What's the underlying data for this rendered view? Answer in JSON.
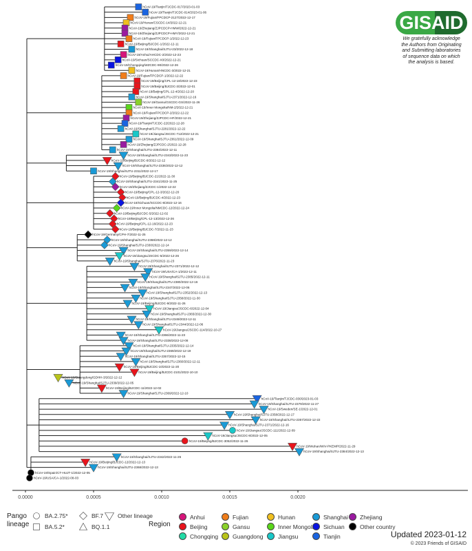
{
  "logo": {
    "text": "GISAID",
    "acknowledgement": [
      "We gratefully acknowledge",
      "the Authors from Originating",
      "and Submitting laboratories",
      "of sequence data on which",
      "the analysis is based."
    ]
  },
  "axis": {
    "ticks": [
      "0.0000",
      "0.0005",
      "0.0010",
      "0.0015",
      "0.0020"
    ],
    "tick_values": [
      0,
      0.0005,
      0.001,
      0.0015,
      0.002
    ]
  },
  "lineage_legend": {
    "title": [
      "Pango",
      "lineage"
    ],
    "items": [
      {
        "key": "ci",
        "label": "BA.2.75*",
        "shape": "circle"
      },
      {
        "key": "sq",
        "label": "BA.5.2*",
        "shape": "square"
      },
      {
        "key": "dm",
        "label": "BF.7",
        "shape": "diamond"
      },
      {
        "key": "tu",
        "label": "BQ.1.1",
        "shape": "triangle-up"
      },
      {
        "key": "td",
        "label": "Other lineage",
        "shape": "triangle-down"
      }
    ]
  },
  "region_legend": {
    "title": "Region",
    "items": [
      {
        "key": "AH",
        "label": "Anhui",
        "color": "#d6157a"
      },
      {
        "key": "BJ",
        "label": "Beijing",
        "color": "#e8141b"
      },
      {
        "key": "CQ",
        "label": "Chongqing",
        "color": "#22dba6"
      },
      {
        "key": "FJ",
        "label": "Fujian",
        "color": "#f07d1a"
      },
      {
        "key": "GS",
        "label": "Gansu",
        "color": "#8ad12a"
      },
      {
        "key": "GD",
        "label": "Guangdong",
        "color": "#b9c41a"
      },
      {
        "key": "HN",
        "label": "Hunan",
        "color": "#f0c020"
      },
      {
        "key": "IM",
        "label": "Inner Mongolia",
        "color": "#5ad61a"
      },
      {
        "key": "JS",
        "label": "Jiangsu",
        "color": "#19c8c8"
      },
      {
        "key": "SH",
        "label": "Shanghai",
        "color": "#1a9ad6"
      },
      {
        "key": "SC",
        "label": "Sichuan",
        "color": "#0a14e0"
      },
      {
        "key": "TJ",
        "label": "Tianjin",
        "color": "#1a64e0"
      },
      {
        "key": "ZJ",
        "label": "Zhejiang",
        "color": "#9a1aa0"
      },
      {
        "key": "OT",
        "label": "Other country",
        "color": "#000000"
      }
    ]
  },
  "footer": {
    "updated": "Updated 2023-01-12",
    "copyright": "© 2023 Friends of GISAID"
  },
  "tree": {
    "clades": [
      {
        "root": 0.00058,
        "tips": [
          [
            "hCoV-19/Tianjin/TJCDC-017/2023-01-03",
            "TJ",
            "sq",
            0.00083
          ],
          [
            "hCoV-19/Tianjin/TJCDC-014/2023-01-06",
            "TJ",
            "sq",
            0.00088
          ],
          [
            "hCoV-19/Fujian/FPCDCP-2127/2022-12-17",
            "FJ",
            "sq",
            0.00077
          ],
          [
            "hCoV-19/Hunan/CSCDC-14/2022-12-21",
            "HN",
            "sq",
            0.00074
          ],
          [
            "hCoV-19/Zhejiang/ZJPCDCP-HMW/2022-12-21",
            "ZJ",
            "sq",
            0.00073
          ],
          [
            "hCoV-19/Zhejiang/ZJPCDCP-HMY/2022-12-21",
            "ZJ",
            "sq",
            0.00073
          ],
          [
            "hCoV-19/Fujian/FPCDCP-1/2022-12-23",
            "FJ",
            "sq",
            0.00076
          ],
          [
            "hCoV-19/Beijing/BJCDC-1/2022-12-11",
            "BJ",
            "sq",
            0.0007
          ],
          [
            "hCoV-19/Shanghai/SJTU-23/2022-12-18",
            "SH",
            "sq",
            0.00078
          ],
          [
            "hCoV-19/Anhui/AHCDC-2/2022-12-23",
            "AH",
            "sq",
            0.00072
          ],
          [
            "hCoV-19/Sichuan/SCCDC-X0/2022-12-21",
            "SC",
            "sq",
            0.00068
          ],
          [
            "hCoV-19/Chongqing/WZCDC-90/2022-12-26",
            "SC",
            "sq",
            0.00063
          ],
          [
            "hCoV-19/Hunan/HNCDC-3/2022-12-21",
            "HN",
            "sq",
            0.00078
          ]
        ]
      },
      {
        "root": 0.00056,
        "tips": [
          [
            "hCoV-19/Fujian/FPCDCP-1/2022-12-22",
            "FJ",
            "sq",
            0.00072
          ],
          [
            "hCoV-19/Beijing/CPL-12-18/2022-12-23",
            "BJ",
            "sq",
            0.00082
          ],
          [
            "hCoV-19/Beijing/BJCDC-3/2022-12-01",
            "BJ",
            "sq",
            0.00082
          ],
          [
            "hCoV-19/Beijing/CPL-12-4/2022-12-20",
            "BJ",
            "sq",
            0.00081
          ],
          [
            "hCoV-19/Shanghai/SJTU-2371/2022-12-16",
            "SH",
            "sq",
            0.00078
          ],
          [
            "hCoV-19/Gansu/GSCDC-GS/2022-11-26",
            "GS",
            "sq",
            0.00083
          ],
          [
            "hCoV-19/Inner Mongolia/NM-2/2022-12-21",
            "IM",
            "sq",
            0.00076
          ],
          [
            "hCoV-19/Fujian/FPCDCP-2/2022-12-22",
            "FJ",
            "sq",
            0.00076
          ],
          [
            "hCoV-19/Zhejiang/ZJPCDC-HF/2022-12-21",
            "ZJ",
            "sq",
            0.00074
          ],
          [
            "hCoV-19/Tianjin/TJCDC-22/2022-12-28",
            "TJ",
            "sq",
            0.00073
          ],
          [
            "hCoV-19/Shanghai/SJTU-2281/2022-12-22",
            "SH",
            "sq",
            0.0007
          ],
          [
            "hCoV-19/Jiangsu/JSCDC-712/2022-12-21",
            "JS",
            "sq",
            0.00081
          ],
          [
            "hCoV-19/Shanghai/SJTU-2361/2022-12-09",
            "SH",
            "sq",
            0.00076
          ],
          [
            "hCoV-19/Zhejiang/ZJPCDC-2/2022-12-28",
            "ZJ",
            "sq",
            0.00072
          ],
          [
            "hCoV-19/Shanghai/SJTU-2384/2022-12-11",
            "SH",
            "sq",
            0.00064
          ]
        ]
      },
      {
        "root": 0.0003,
        "tips": [
          [
            "hCoV-19/Shanghai/SJTU-2343/2022-11-23",
            "SH",
            "td",
            0.00072
          ],
          [
            "hCoV-19/Beijing/BJCDC-8/2022-12-12",
            "BJ",
            "td",
            0.0006
          ],
          [
            "hCoV-19/Shanghai/SJTU-2336/2022-12-12",
            "SH",
            "td",
            0.00068
          ],
          [
            "hCoV-19/Shanghai/SJTU-2311/2022-12-17",
            "SH",
            "sq",
            0.0005
          ]
        ]
      },
      {
        "root": 0.0005,
        "tips": [
          [
            "hCoV-19/Beijing/BJCDC-21/2022-11-30",
            "BJ",
            "dm",
            0.00066
          ],
          [
            "hCoV-19/Shanghai/SJTU-2341/2022-11-25",
            "SH",
            "dm",
            0.00064
          ],
          [
            "hCoV-19/Zhejiang/ZJCDC-1/2022-12-22",
            "ZJ",
            "dm",
            0.00066
          ],
          [
            "hCoV-19/Beijing/CPL-12-3/2022-12-20",
            "BJ",
            "dm",
            0.0007
          ],
          [
            "hCoV-19/Beijing/BJCDC-4/2022-12-23",
            "BJ",
            "dm",
            0.00071
          ],
          [
            "hCoV-19/Sichuan/SCCDC-8/2022-12-16",
            "SC",
            "dm",
            0.0007
          ],
          [
            "hCoV-19/Inner Mongolia/NMCDC-12/2022-12-24",
            "IM",
            "dm",
            0.00067
          ],
          [
            "hCoV-19/Beijing/BJCDC-5/2022-12-02",
            "BJ",
            "dm",
            0.00062
          ],
          [
            "hCoV-19/Beijing/CPL-12-13/2022-12-26",
            "BJ",
            "dm",
            0.00065
          ],
          [
            "hCoV-19/Beijing/CPL-12-16/2022-12-23",
            "BJ",
            "dm",
            0.00064
          ],
          [
            "hCoV-19/Beijing/BJCDC-7/2022-11-23",
            "BJ",
            "dm",
            0.00066
          ]
        ]
      },
      {
        "root": 0.00038,
        "tips": [
          [
            "hCoV-19/Germany/CPH-7/2022-11-25",
            "OT",
            "dm",
            0.00046
          ],
          [
            "hCoV-19/Shanghai/SJTU-2368/2022-12-12",
            "SH",
            "dm",
            0.0006
          ],
          [
            "hCoV-19/Shanghai/SJTU-2330/2022-12-14",
            "SH",
            "dm",
            0.00058
          ],
          [
            "hCoV-19/Shanghai/SJTU-2359/2022-12-14",
            "SH",
            "td",
            0.00072
          ],
          [
            "hCoV-19/Jiangsu/JSCDC-5/2022-12-26",
            "JS",
            "td",
            0.00069
          ],
          [
            "hCoV-19/Shanghai/SJTU-2376/2022-11-23",
            "SH",
            "td",
            0.00062
          ]
        ]
      },
      {
        "root": 0.00045,
        "tips": [
          [
            "hCoV-19/Shanghai/SJTU-2371/2022-12-12",
            "SH",
            "td",
            0.0008
          ],
          [
            "hCoV-19/USA/CA-1/2022-12-11",
            "SH",
            "td",
            0.0009
          ],
          [
            "hCoV-19/Shanghai/SJTU-2385/2022-12-11",
            "SH",
            "td",
            0.00088
          ],
          [
            "hCoV-19/Shanghai/SJTU-2380/2022-12-16",
            "SH",
            "td",
            0.00079
          ],
          [
            "hCoV-19/Shanghai/SJTU-2347/2022-12-06",
            "SH",
            "td",
            0.00073
          ],
          [
            "hCoV-19/Shanghai/SJTU-2352/2022-12-13",
            "SH",
            "td",
            0.00086
          ],
          [
            "hCoV-19/Shanghai/SJTU-2358/2022-11-30",
            "SH",
            "td",
            0.00081
          ],
          [
            "hCoV-19/Beijing/BJCDC-9/2022-11-26",
            "SH",
            "td",
            0.00075
          ],
          [
            "hCoV-19/Jiangsu/JSCDC-6/2022-12-04",
            "JS",
            "td",
            0.00091
          ],
          [
            "hCoV-19/Shanghai/SJTU-2365/2022-12-30",
            "SH",
            "td",
            0.00089
          ],
          [
            "hCoV-19/Shanghai/SJTU-2349/2022-12-11",
            "SH",
            "td",
            0.00078
          ],
          [
            "hCoV-19/Shanghai/SJTU-2344/2022-12-06",
            "SH",
            "td",
            0.00083
          ],
          [
            "hCoV-19/Jiangsu/JSCDC-114/2022-10-27",
            "JS",
            "td",
            0.00098
          ],
          [
            "hCoV-19/Shanghai/SJTU-2366/2022-11-23",
            "SH",
            "td",
            0.0007
          ],
          [
            "hCoV-19/Shanghai/SJTU-2338/2022-12-08",
            "SH",
            "td",
            0.00072
          ]
        ]
      },
      {
        "root": 0.0004,
        "tips": [
          [
            "hCoV-19/Shanghai/SJTU-2335/2022-12-14",
            "SH",
            "td",
            0.00076
          ],
          [
            "hCoV-19/Shanghai/SJTU-2369/2022-12-19",
            "SH",
            "td",
            0.00074
          ],
          [
            "hCoV-19/Shanghai/SJTU-2357/2022-12-15",
            "SH",
            "td",
            0.0007
          ],
          [
            "hCoV-19/Shanghai/SJTU-2360/2022-12-11",
            "SH",
            "td",
            0.00081
          ],
          [
            "hCoV-19/Beijing/BJCDC-10/2022-11-20",
            "BJ",
            "td",
            0.00069
          ],
          [
            "hCoV-19/Beijing/BJCDC-2101/2022-10-10",
            "BJ",
            "td",
            0.0008
          ],
          [
            "hCoV-19/Guangdong/GDHH-3/2022-12-12",
            "GD",
            "td",
            0.00024
          ],
          [
            "hCoV-19/Shanghai/SJTU-2339/2022-12-05",
            "SH",
            "td",
            0.00032
          ],
          [
            "hCoV-19/Beijing/BJCDC-11/2022-12-02",
            "BJ",
            "td",
            0.00056
          ],
          [
            "hCoV-19/Shanghai/SJTU-2369/2022-12-10",
            "SH",
            "td",
            0.00072
          ]
        ]
      },
      {
        "root": 0.0001,
        "tips": [
          [
            "hCoV-19/Tianjin/TJCDC-030/2023-01-03",
            "TJ",
            "td",
            0.0017
          ],
          [
            "hCoV-19/Shanghai/SJTU-2379/2022-11-27",
            "SH",
            "td",
            0.00168
          ],
          [
            "hCoV-19/Sweden/SE-1/2022-12-01",
            "SH",
            "td",
            0.00175
          ],
          [
            "hCoV-19/Shanghai/SJTU-2358/2022-12-17",
            "SH",
            "td",
            0.0015
          ],
          [
            "hCoV-19/Shanghai/SJTU-2357/2022-12-22",
            "SH",
            "td",
            0.00169
          ],
          [
            "hCoV-19/Shanghai/SJTU-2371/2022-12-16",
            "SH",
            "td",
            0.00146
          ],
          [
            "hCoV-19/Jiangsu/JSCDC-111/2022-12-09",
            "JS",
            "ci",
            0.00152
          ],
          [
            "hCoV-19/Jiangsu/JSCDC-8/2022-12-05",
            "JS",
            "td",
            0.00134
          ],
          [
            "hCoV-19/Beijing/BJCDC-3052/2022-11-26",
            "BJ",
            "ci",
            0.00117
          ],
          [
            "hCoV-19/Wuhan/WIV-PKEMP/2022-11-29",
            "BJ",
            "td",
            0.00196
          ],
          [
            "hCoV-19/Shanghai/SJTU-2384/2022-12-13",
            "SH",
            "td",
            0.00201
          ]
        ]
      },
      {
        "root": 4e-05,
        "tips": [
          [
            "hCoV-19/Shanghai/SJTU-2342/2022-11-26",
            "SH",
            "td",
            0.00067
          ],
          [
            "hCoV-19/Beijing/BJCDC-12/2022-12-13",
            "BJ",
            "td",
            0.00044
          ],
          [
            "hCoV-19/Shanghai/SJTU-2368/2022-12-13",
            "SH",
            "td",
            0.0005
          ],
          [
            "hCoV-19/Spain/CT-HUJT-1/2022-12-05",
            "OT",
            "ci",
            4e-05
          ],
          [
            "hCoV-19/USA/CA-1/2022-08-03",
            "OT",
            "ci",
            3e-05
          ]
        ]
      }
    ]
  }
}
